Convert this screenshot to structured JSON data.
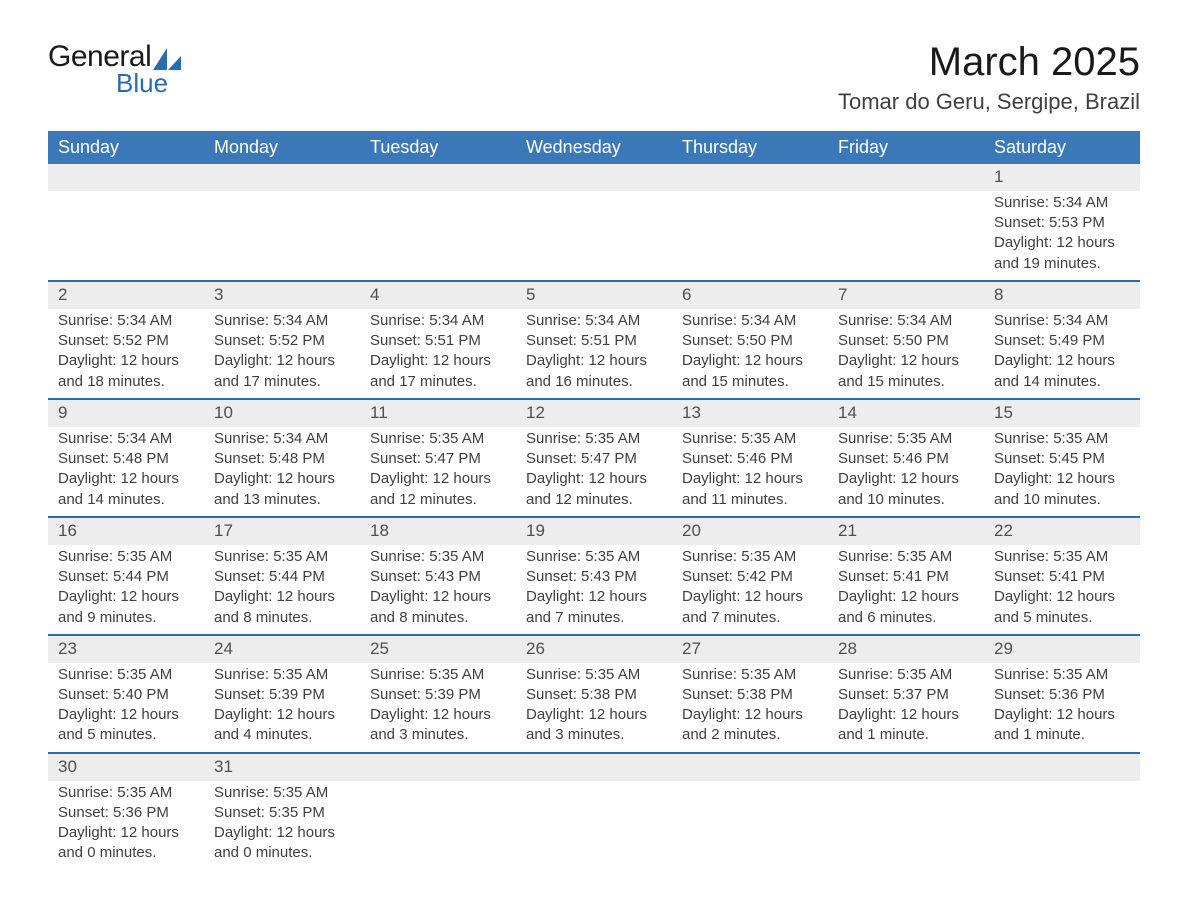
{
  "logo": {
    "line1": "General",
    "line2": "Blue",
    "shape_color": "#2a6cb0"
  },
  "title": "March 2025",
  "location": "Tomar do Geru, Sergipe, Brazil",
  "colors": {
    "header_bg": "#3b78b8",
    "header_text": "#ffffff",
    "daynum_bg": "#ededed",
    "divider": "#2a6cb0",
    "body_text": "#404040"
  },
  "day_headers": [
    "Sunday",
    "Monday",
    "Tuesday",
    "Wednesday",
    "Thursday",
    "Friday",
    "Saturday"
  ],
  "weeks": [
    [
      null,
      null,
      null,
      null,
      null,
      null,
      {
        "n": "1",
        "sunrise": "Sunrise: 5:34 AM",
        "sunset": "Sunset: 5:53 PM",
        "daylight": "Daylight: 12 hours and 19 minutes."
      }
    ],
    [
      {
        "n": "2",
        "sunrise": "Sunrise: 5:34 AM",
        "sunset": "Sunset: 5:52 PM",
        "daylight": "Daylight: 12 hours and 18 minutes."
      },
      {
        "n": "3",
        "sunrise": "Sunrise: 5:34 AM",
        "sunset": "Sunset: 5:52 PM",
        "daylight": "Daylight: 12 hours and 17 minutes."
      },
      {
        "n": "4",
        "sunrise": "Sunrise: 5:34 AM",
        "sunset": "Sunset: 5:51 PM",
        "daylight": "Daylight: 12 hours and 17 minutes."
      },
      {
        "n": "5",
        "sunrise": "Sunrise: 5:34 AM",
        "sunset": "Sunset: 5:51 PM",
        "daylight": "Daylight: 12 hours and 16 minutes."
      },
      {
        "n": "6",
        "sunrise": "Sunrise: 5:34 AM",
        "sunset": "Sunset: 5:50 PM",
        "daylight": "Daylight: 12 hours and 15 minutes."
      },
      {
        "n": "7",
        "sunrise": "Sunrise: 5:34 AM",
        "sunset": "Sunset: 5:50 PM",
        "daylight": "Daylight: 12 hours and 15 minutes."
      },
      {
        "n": "8",
        "sunrise": "Sunrise: 5:34 AM",
        "sunset": "Sunset: 5:49 PM",
        "daylight": "Daylight: 12 hours and 14 minutes."
      }
    ],
    [
      {
        "n": "9",
        "sunrise": "Sunrise: 5:34 AM",
        "sunset": "Sunset: 5:48 PM",
        "daylight": "Daylight: 12 hours and 14 minutes."
      },
      {
        "n": "10",
        "sunrise": "Sunrise: 5:34 AM",
        "sunset": "Sunset: 5:48 PM",
        "daylight": "Daylight: 12 hours and 13 minutes."
      },
      {
        "n": "11",
        "sunrise": "Sunrise: 5:35 AM",
        "sunset": "Sunset: 5:47 PM",
        "daylight": "Daylight: 12 hours and 12 minutes."
      },
      {
        "n": "12",
        "sunrise": "Sunrise: 5:35 AM",
        "sunset": "Sunset: 5:47 PM",
        "daylight": "Daylight: 12 hours and 12 minutes."
      },
      {
        "n": "13",
        "sunrise": "Sunrise: 5:35 AM",
        "sunset": "Sunset: 5:46 PM",
        "daylight": "Daylight: 12 hours and 11 minutes."
      },
      {
        "n": "14",
        "sunrise": "Sunrise: 5:35 AM",
        "sunset": "Sunset: 5:46 PM",
        "daylight": "Daylight: 12 hours and 10 minutes."
      },
      {
        "n": "15",
        "sunrise": "Sunrise: 5:35 AM",
        "sunset": "Sunset: 5:45 PM",
        "daylight": "Daylight: 12 hours and 10 minutes."
      }
    ],
    [
      {
        "n": "16",
        "sunrise": "Sunrise: 5:35 AM",
        "sunset": "Sunset: 5:44 PM",
        "daylight": "Daylight: 12 hours and 9 minutes."
      },
      {
        "n": "17",
        "sunrise": "Sunrise: 5:35 AM",
        "sunset": "Sunset: 5:44 PM",
        "daylight": "Daylight: 12 hours and 8 minutes."
      },
      {
        "n": "18",
        "sunrise": "Sunrise: 5:35 AM",
        "sunset": "Sunset: 5:43 PM",
        "daylight": "Daylight: 12 hours and 8 minutes."
      },
      {
        "n": "19",
        "sunrise": "Sunrise: 5:35 AM",
        "sunset": "Sunset: 5:43 PM",
        "daylight": "Daylight: 12 hours and 7 minutes."
      },
      {
        "n": "20",
        "sunrise": "Sunrise: 5:35 AM",
        "sunset": "Sunset: 5:42 PM",
        "daylight": "Daylight: 12 hours and 7 minutes."
      },
      {
        "n": "21",
        "sunrise": "Sunrise: 5:35 AM",
        "sunset": "Sunset: 5:41 PM",
        "daylight": "Daylight: 12 hours and 6 minutes."
      },
      {
        "n": "22",
        "sunrise": "Sunrise: 5:35 AM",
        "sunset": "Sunset: 5:41 PM",
        "daylight": "Daylight: 12 hours and 5 minutes."
      }
    ],
    [
      {
        "n": "23",
        "sunrise": "Sunrise: 5:35 AM",
        "sunset": "Sunset: 5:40 PM",
        "daylight": "Daylight: 12 hours and 5 minutes."
      },
      {
        "n": "24",
        "sunrise": "Sunrise: 5:35 AM",
        "sunset": "Sunset: 5:39 PM",
        "daylight": "Daylight: 12 hours and 4 minutes."
      },
      {
        "n": "25",
        "sunrise": "Sunrise: 5:35 AM",
        "sunset": "Sunset: 5:39 PM",
        "daylight": "Daylight: 12 hours and 3 minutes."
      },
      {
        "n": "26",
        "sunrise": "Sunrise: 5:35 AM",
        "sunset": "Sunset: 5:38 PM",
        "daylight": "Daylight: 12 hours and 3 minutes."
      },
      {
        "n": "27",
        "sunrise": "Sunrise: 5:35 AM",
        "sunset": "Sunset: 5:38 PM",
        "daylight": "Daylight: 12 hours and 2 minutes."
      },
      {
        "n": "28",
        "sunrise": "Sunrise: 5:35 AM",
        "sunset": "Sunset: 5:37 PM",
        "daylight": "Daylight: 12 hours and 1 minute."
      },
      {
        "n": "29",
        "sunrise": "Sunrise: 5:35 AM",
        "sunset": "Sunset: 5:36 PM",
        "daylight": "Daylight: 12 hours and 1 minute."
      }
    ],
    [
      {
        "n": "30",
        "sunrise": "Sunrise: 5:35 AM",
        "sunset": "Sunset: 5:36 PM",
        "daylight": "Daylight: 12 hours and 0 minutes."
      },
      {
        "n": "31",
        "sunrise": "Sunrise: 5:35 AM",
        "sunset": "Sunset: 5:35 PM",
        "daylight": "Daylight: 12 hours and 0 minutes."
      },
      null,
      null,
      null,
      null,
      null
    ]
  ]
}
